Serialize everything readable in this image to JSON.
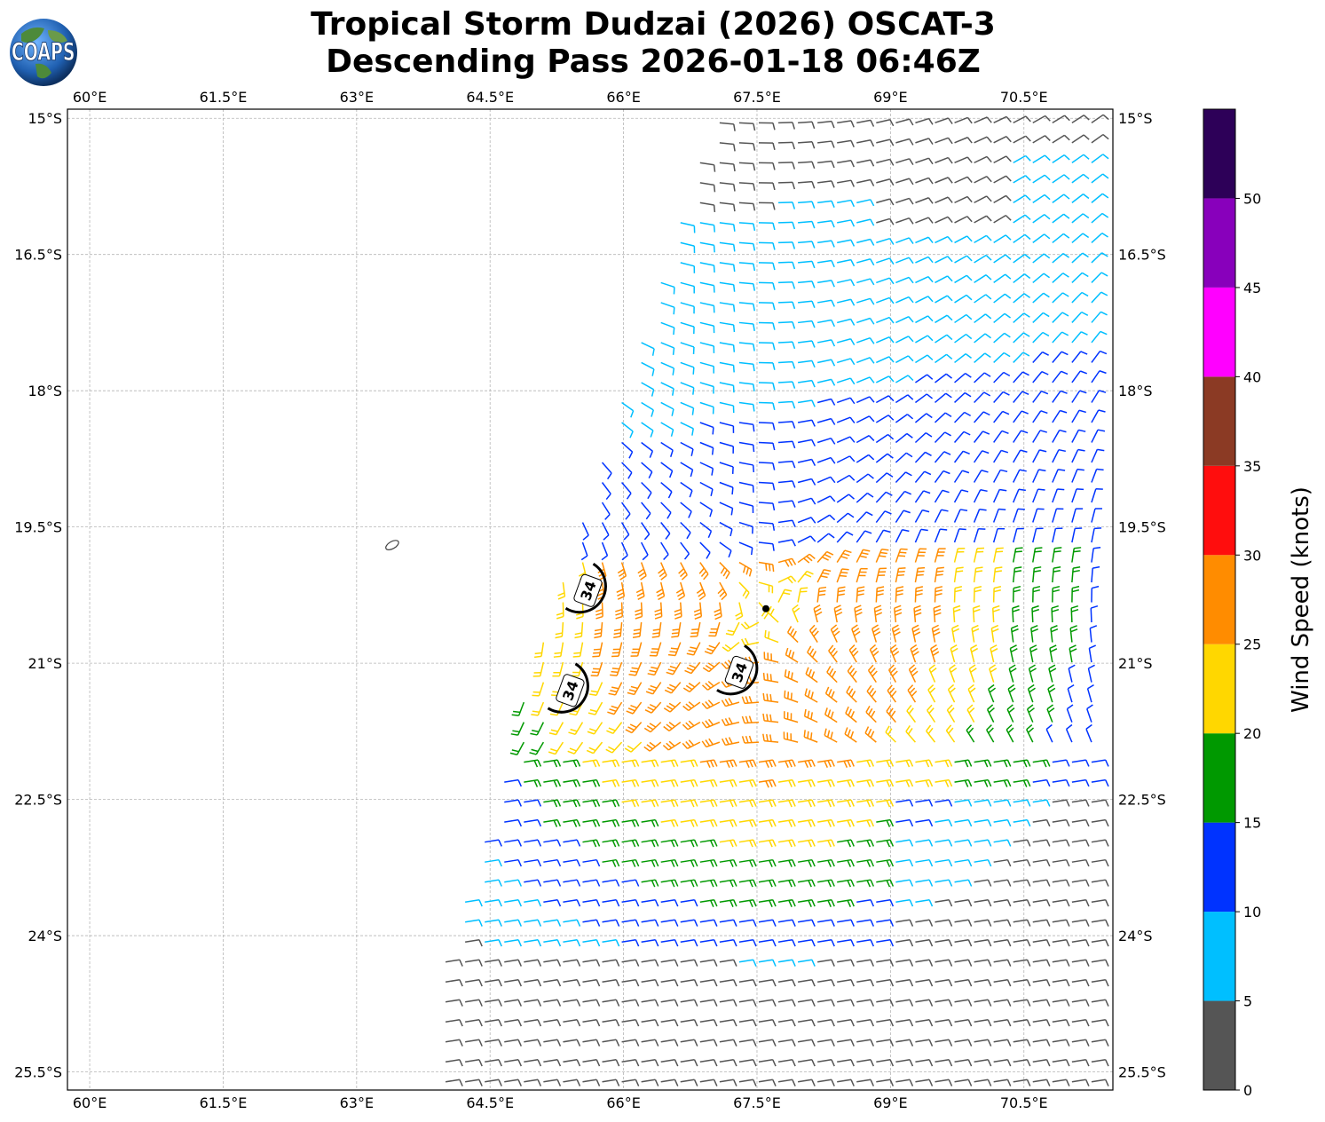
{
  "header": {
    "title_line1": "Tropical Storm Dudzai (2026) OSCAT-3",
    "title_line2": "Descending Pass 2026-01-18 06:46Z",
    "logo_text": "COAPS"
  },
  "map": {
    "lon_range": [
      59.75,
      71.5
    ],
    "lat_range": [
      -25.7,
      -14.9
    ],
    "lon_ticks": [
      "60°E",
      "61.5°E",
      "63°E",
      "64.5°E",
      "66°E",
      "67.5°E",
      "69°E",
      "70.5°E"
    ],
    "lon_tick_values": [
      60,
      61.5,
      63,
      64.5,
      66,
      67.5,
      69,
      70.5
    ],
    "lat_ticks": [
      "15°S",
      "16.5°S",
      "18°S",
      "19.5°S",
      "21°S",
      "22.5°S",
      "24°S",
      "25.5°S"
    ],
    "lat_tick_values": [
      -15,
      -16.5,
      -18,
      -19.5,
      -21,
      -22.5,
      -24,
      -25.5
    ],
    "gridlines": true,
    "contour_label": "34",
    "contour_labels": [
      {
        "text": "34",
        "lon": 65.6,
        "lat": -20.2
      },
      {
        "text": "34",
        "lon": 65.4,
        "lat": -21.3
      },
      {
        "text": "34",
        "lon": 67.3,
        "lat": -21.1
      }
    ],
    "island_lon": 63.4,
    "island_lat": -19.7,
    "storm_center_lon": 67.6,
    "storm_center_lat": -20.4
  },
  "colorbar": {
    "label": "Wind Speed (knots)",
    "ticks": [
      "0",
      "5",
      "10",
      "15",
      "20",
      "25",
      "30",
      "35",
      "40",
      "45",
      "50"
    ],
    "bins": [
      0,
      5,
      10,
      15,
      20,
      25,
      30,
      35,
      40,
      45,
      50,
      55
    ],
    "colors": [
      "#555555",
      "#00bfff",
      "#0033ff",
      "#009900",
      "#ffd700",
      "#ff8c00",
      "#ff0d0d",
      "#8b3a24",
      "#ff00ff",
      "#8800bb",
      "#2d0058"
    ]
  }
}
